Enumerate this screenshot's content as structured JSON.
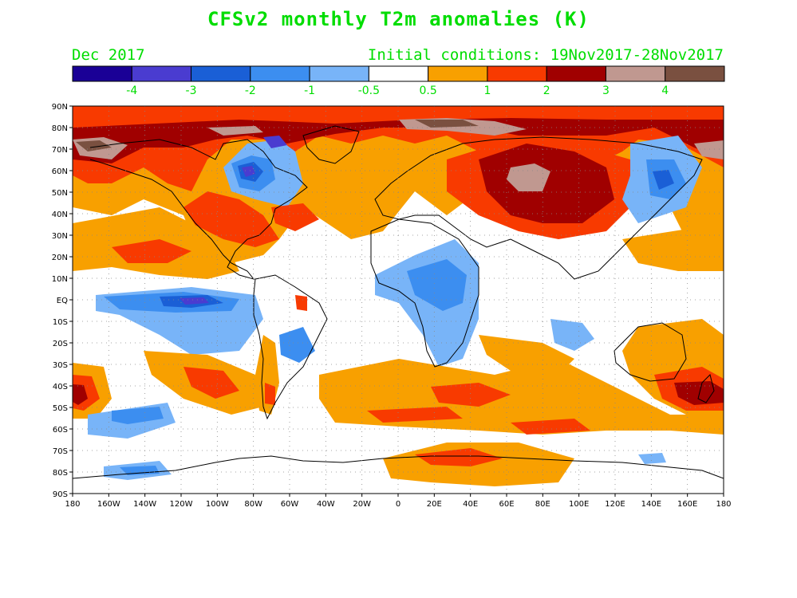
{
  "title": "CFSv2 monthly T2m anomalies (K)",
  "valid_month": "Dec 2017",
  "init_conditions": "Initial conditions: 19Nov2017-28Nov2017",
  "colorbar": {
    "bins": [
      {
        "color": "#1a0096"
      },
      {
        "color": "#4a3cd0"
      },
      {
        "color": "#1a5fd6"
      },
      {
        "color": "#3c8ef0"
      },
      {
        "color": "#78b4f8"
      },
      {
        "color": "#ffffff"
      },
      {
        "color": "#f8a000"
      },
      {
        "color": "#f83a00"
      },
      {
        "color": "#a00000"
      },
      {
        "color": "#c09890"
      },
      {
        "color": "#7a5040"
      }
    ],
    "labels": [
      "-4",
      "-3",
      "-2",
      "-1",
      "-0.5",
      "0.5",
      "1",
      "2",
      "3",
      "4"
    ],
    "label_color": "#00dd00"
  },
  "axes": {
    "lat_labels": [
      "90N",
      "80N",
      "70N",
      "60N",
      "50N",
      "40N",
      "30N",
      "20N",
      "10N",
      "EQ",
      "10S",
      "20S",
      "30S",
      "40S",
      "50S",
      "60S",
      "70S",
      "80S",
      "90S"
    ],
    "lon_labels": [
      "180",
      "160W",
      "140W",
      "120W",
      "100W",
      "80W",
      "60W",
      "40W",
      "20W",
      "0",
      "20E",
      "40E",
      "60E",
      "80E",
      "100E",
      "120E",
      "140E",
      "160E",
      "180"
    ],
    "lat_range": [
      -90,
      90
    ],
    "lon_range": [
      -180,
      180
    ],
    "grid": "dotted"
  }
}
